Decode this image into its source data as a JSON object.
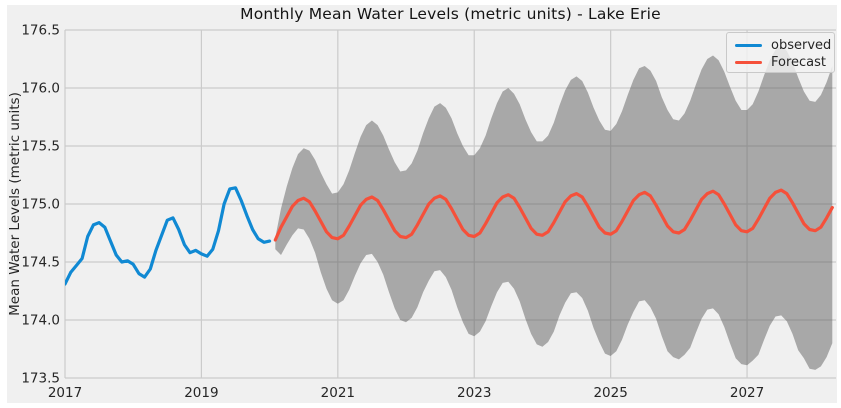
{
  "figure": {
    "outer_bg": "#ffffff",
    "panel_bg": "#f0f0f0",
    "grid_color": "#cbcbcb",
    "text_color": "#262626",
    "band_color": "#5a5a5a",
    "band_opacity": 0.48
  },
  "legend": {
    "entries": [
      {
        "label": "observed",
        "color": "#1089d3"
      },
      {
        "label": "Forecast",
        "color": "#f5503a"
      }
    ]
  },
  "chart_data": {
    "type": "line",
    "title": "Monthly Mean Water Levels (metric units) - Lake Erie",
    "xlabel": "",
    "ylabel": "Mean Water Levels (metric units)",
    "grid": true,
    "legend_position": "upper right",
    "xlim": [
      2017.0,
      2028.304
    ],
    "ylim": [
      173.5,
      176.5
    ],
    "x_ticks": [
      2017,
      2019,
      2021,
      2023,
      2025,
      2027
    ],
    "y_ticks": [
      173.5,
      174.0,
      174.5,
      175.0,
      175.5,
      176.0,
      176.5
    ],
    "series": [
      {
        "name": "observed",
        "color": "#1089d3",
        "start_year": 2017.0,
        "step_years": 0.083333,
        "values": [
          174.31,
          174.41,
          174.47,
          174.53,
          174.72,
          174.82,
          174.84,
          174.8,
          174.68,
          174.56,
          174.5,
          174.51,
          174.48,
          174.4,
          174.37,
          174.44,
          174.6,
          174.73,
          174.86,
          174.88,
          174.78,
          174.65,
          174.58,
          174.6,
          174.57,
          174.55,
          174.61,
          174.77,
          175.0,
          175.13,
          175.14,
          175.03,
          174.9,
          174.78,
          174.7,
          174.67,
          174.68
        ]
      },
      {
        "name": "Forecast",
        "color": "#f5503a",
        "start_year": 2020.083333,
        "step_years": 0.083333,
        "values": [
          174.69,
          174.8,
          174.89,
          174.98,
          175.03,
          175.05,
          175.02,
          174.94,
          174.85,
          174.76,
          174.71,
          174.7,
          174.73,
          174.81,
          174.9,
          174.99,
          175.04,
          175.06,
          175.03,
          174.95,
          174.86,
          174.77,
          174.72,
          174.71,
          174.74,
          174.82,
          174.91,
          175.0,
          175.05,
          175.07,
          175.04,
          174.96,
          174.87,
          174.78,
          174.73,
          174.72,
          174.75,
          174.83,
          174.92,
          175.01,
          175.06,
          175.08,
          175.05,
          174.97,
          174.88,
          174.79,
          174.74,
          174.73,
          174.76,
          174.84,
          174.93,
          175.02,
          175.07,
          175.09,
          175.06,
          174.98,
          174.89,
          174.8,
          174.75,
          174.74,
          174.77,
          174.85,
          174.94,
          175.03,
          175.08,
          175.1,
          175.07,
          174.99,
          174.9,
          174.81,
          174.76,
          174.75,
          174.78,
          174.86,
          174.95,
          175.04,
          175.09,
          175.11,
          175.08,
          175.0,
          174.91,
          174.82,
          174.77,
          174.76,
          174.79,
          174.87,
          174.96,
          175.05,
          175.1,
          175.12,
          175.09,
          175.01,
          174.92,
          174.83,
          174.78,
          174.77,
          174.8,
          174.88,
          174.97
        ]
      }
    ],
    "confidence_band": {
      "name": "forecast-uncertainty-band",
      "start_year": 2020.083333,
      "step_years": 0.083333,
      "upper": [
        174.71,
        174.96,
        175.15,
        175.31,
        175.43,
        175.48,
        175.46,
        175.38,
        175.27,
        175.17,
        175.09,
        175.1,
        175.17,
        175.29,
        175.44,
        175.58,
        175.68,
        175.72,
        175.68,
        175.59,
        175.47,
        175.36,
        175.28,
        175.29,
        175.35,
        175.46,
        175.61,
        175.74,
        175.84,
        175.87,
        175.83,
        175.74,
        175.61,
        175.5,
        175.42,
        175.42,
        175.48,
        175.59,
        175.74,
        175.87,
        175.97,
        176.0,
        175.95,
        175.86,
        175.73,
        175.62,
        175.54,
        175.54,
        175.59,
        175.7,
        175.85,
        175.98,
        176.07,
        176.1,
        176.06,
        175.96,
        175.83,
        175.72,
        175.64,
        175.63,
        175.69,
        175.8,
        175.94,
        176.07,
        176.17,
        176.19,
        176.15,
        176.06,
        175.92,
        175.81,
        175.73,
        175.72,
        175.78,
        175.89,
        176.03,
        176.16,
        176.25,
        176.28,
        176.24,
        176.14,
        176.01,
        175.89,
        175.81,
        175.81,
        175.86,
        175.97,
        176.11,
        176.24,
        176.33,
        176.36,
        176.32,
        176.22,
        176.09,
        175.97,
        175.89,
        175.88,
        175.94,
        176.05,
        176.19
      ],
      "lower": [
        174.61,
        174.56,
        174.65,
        174.73,
        174.79,
        174.78,
        174.7,
        174.58,
        174.41,
        174.27,
        174.17,
        174.14,
        174.17,
        174.26,
        174.38,
        174.49,
        174.56,
        174.57,
        174.5,
        174.39,
        174.24,
        174.1,
        174.0,
        173.98,
        174.02,
        174.11,
        174.24,
        174.34,
        174.42,
        174.43,
        174.37,
        174.26,
        174.11,
        173.98,
        173.88,
        173.86,
        173.9,
        173.99,
        174.12,
        174.24,
        174.32,
        174.33,
        174.27,
        174.16,
        174.01,
        173.88,
        173.79,
        173.77,
        173.81,
        173.9,
        174.04,
        174.15,
        174.23,
        174.24,
        174.19,
        174.08,
        173.93,
        173.81,
        173.71,
        173.69,
        173.73,
        173.83,
        173.96,
        174.07,
        174.16,
        174.17,
        174.11,
        174.01,
        173.86,
        173.73,
        173.68,
        173.66,
        173.7,
        173.76,
        173.89,
        174.01,
        174.09,
        174.1,
        174.05,
        173.94,
        173.8,
        173.67,
        173.62,
        173.61,
        173.65,
        173.7,
        173.83,
        173.95,
        174.03,
        174.04,
        173.99,
        173.88,
        173.74,
        173.67,
        173.58,
        173.57,
        173.6,
        173.68,
        173.8
      ]
    }
  }
}
